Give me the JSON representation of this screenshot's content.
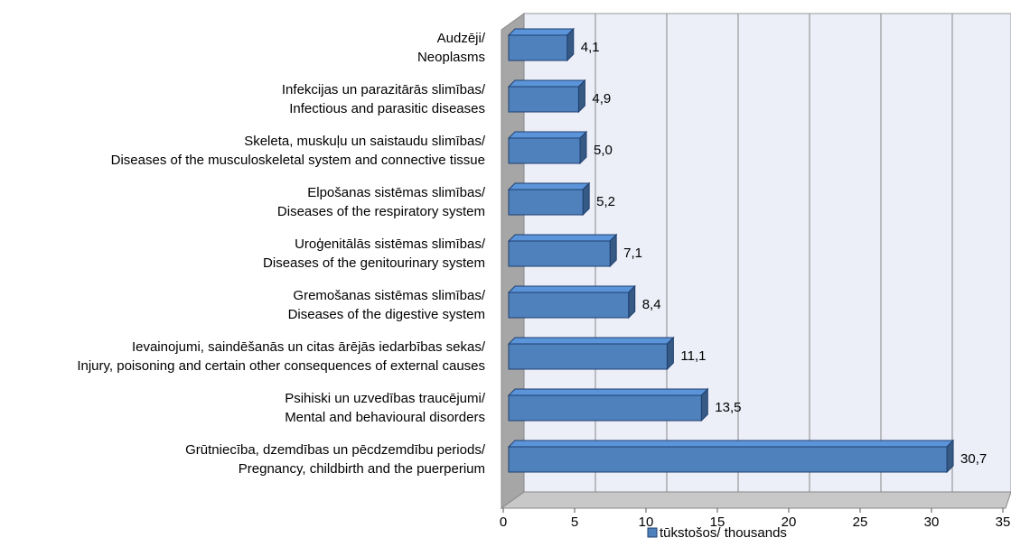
{
  "chart_data": {
    "type": "bar",
    "orientation": "horizontal",
    "three_d": true,
    "categories": [
      [
        "Audzēji/",
        "Neoplasms"
      ],
      [
        "Infekcijas un parazitārās slimības/",
        "Infectious and parasitic diseases"
      ],
      [
        "Skeleta, muskuļu un saistaudu slimības/",
        "Diseases of the musculoskeletal system and connective tissue"
      ],
      [
        "Elpošanas sistēmas slimības/",
        "Diseases of the respiratory system"
      ],
      [
        "Uroģenitālās sistēmas slimības/",
        "Diseases of the genitourinary system"
      ],
      [
        "Gremošanas sistēmas slimības/",
        "Diseases of the digestive system"
      ],
      [
        "Ievainojumi, saindēšanās un citas ārējās iedarbības sekas/",
        "Injury, poisoning and certain other consequences of external causes"
      ],
      [
        "Psihiski un uzvedības traucējumi/",
        "Mental and behavioural disorders"
      ],
      [
        "Grūtniecība, dzemdības un pēcdzemdību periods/",
        "Pregnancy, childbirth and the puerperium"
      ]
    ],
    "series": [
      {
        "name": "tūkstošos/ thousands",
        "color": "#4f81bd",
        "values": [
          4.1,
          4.9,
          5.0,
          5.2,
          7.1,
          8.4,
          11.1,
          13.5,
          30.7
        ],
        "value_labels": [
          "4,1",
          "4,9",
          "5,0",
          "5,2",
          "7,1",
          "8,4",
          "11,1",
          "13,5",
          "30,7"
        ]
      }
    ],
    "xlim": [
      0,
      35
    ],
    "xticks": [
      0,
      5,
      10,
      15,
      20,
      25,
      30,
      35
    ],
    "grid": true,
    "legend": "bottom"
  }
}
